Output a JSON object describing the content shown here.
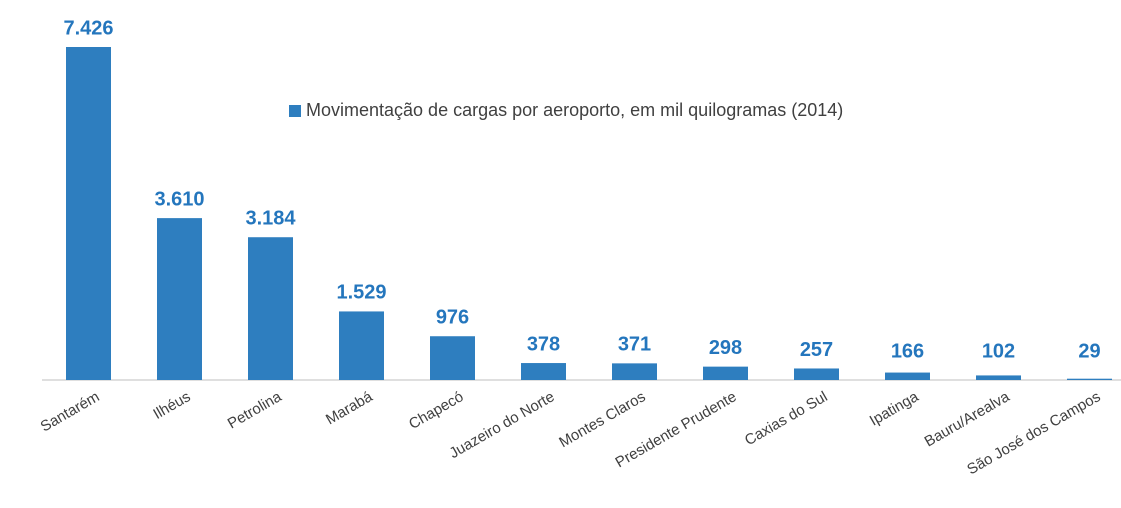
{
  "chart_data": {
    "type": "bar",
    "categories": [
      "Santarém",
      "Ilhéus",
      "Petrolina",
      "Marabá",
      "Chapecó",
      "Juazeiro do Norte",
      "Montes Claros",
      "Presidente Prudente",
      "Caxias do Sul",
      "Ipatinga",
      "Bauru/Arealva",
      "São José dos Campos"
    ],
    "series": [
      {
        "name": "Movimentação de cargas por aeroporto, em mil quilogramas (2014)",
        "color": "#2e7ebf",
        "values": [
          7426,
          3610,
          3184,
          1529,
          976,
          378,
          371,
          298,
          257,
          166,
          102,
          29
        ],
        "value_labels": [
          "7.426",
          "3.610",
          "3.184",
          "1.529",
          "976",
          "378",
          "371",
          "298",
          "257",
          "166",
          "102",
          "29"
        ]
      }
    ],
    "legend": "top-right"
  }
}
